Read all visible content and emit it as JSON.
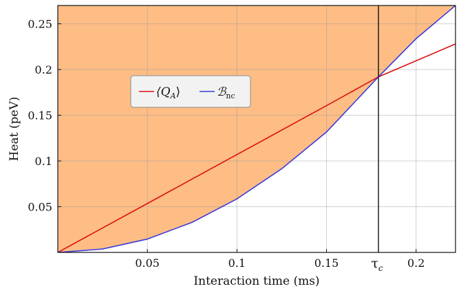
{
  "chart_data": {
    "type": "line",
    "xlabel": "Interaction time (ms)",
    "ylabel": "Heat (peV)",
    "xlim": [
      0,
      0.222
    ],
    "ylim": [
      0,
      0.27
    ],
    "xticks": [
      0.05,
      0.1,
      0.15,
      0.2
    ],
    "xtick_labels": [
      "0.05",
      "0.1",
      "0.15",
      "0.2"
    ],
    "yticks": [
      0.05,
      0.1,
      0.15,
      0.2,
      0.25
    ],
    "ytick_labels": [
      "0.05",
      "0.1",
      "0.15",
      "0.2",
      "0.25"
    ],
    "grid": true,
    "legend_position": "center-left",
    "vline": {
      "x": 0.179,
      "label": "τ",
      "label_sub": "c"
    },
    "series": [
      {
        "name": "⟨Q_A⟩",
        "legend_main": "⟨Q",
        "legend_sub": "A",
        "legend_close": "⟩",
        "color": "#dd1111",
        "x": [
          0,
          0.05,
          0.1,
          0.15,
          0.179,
          0.222
        ],
        "y": [
          0,
          0.0535,
          0.107,
          0.1605,
          0.192,
          0.228
        ]
      },
      {
        "name": "ℬ_nc",
        "legend_main": "ℬ",
        "legend_sub": "nc",
        "legend_close": "",
        "color": "#3b3bdd",
        "x": [
          0,
          0.025,
          0.05,
          0.075,
          0.1,
          0.125,
          0.15,
          0.179,
          0.2,
          0.222
        ],
        "y": [
          0,
          0.0037,
          0.0146,
          0.0329,
          0.0585,
          0.0915,
          0.1317,
          0.192,
          0.2337,
          0.27
        ]
      }
    ],
    "fill": {
      "color": "#fdbd85",
      "region": "above ℬ_nc"
    }
  }
}
